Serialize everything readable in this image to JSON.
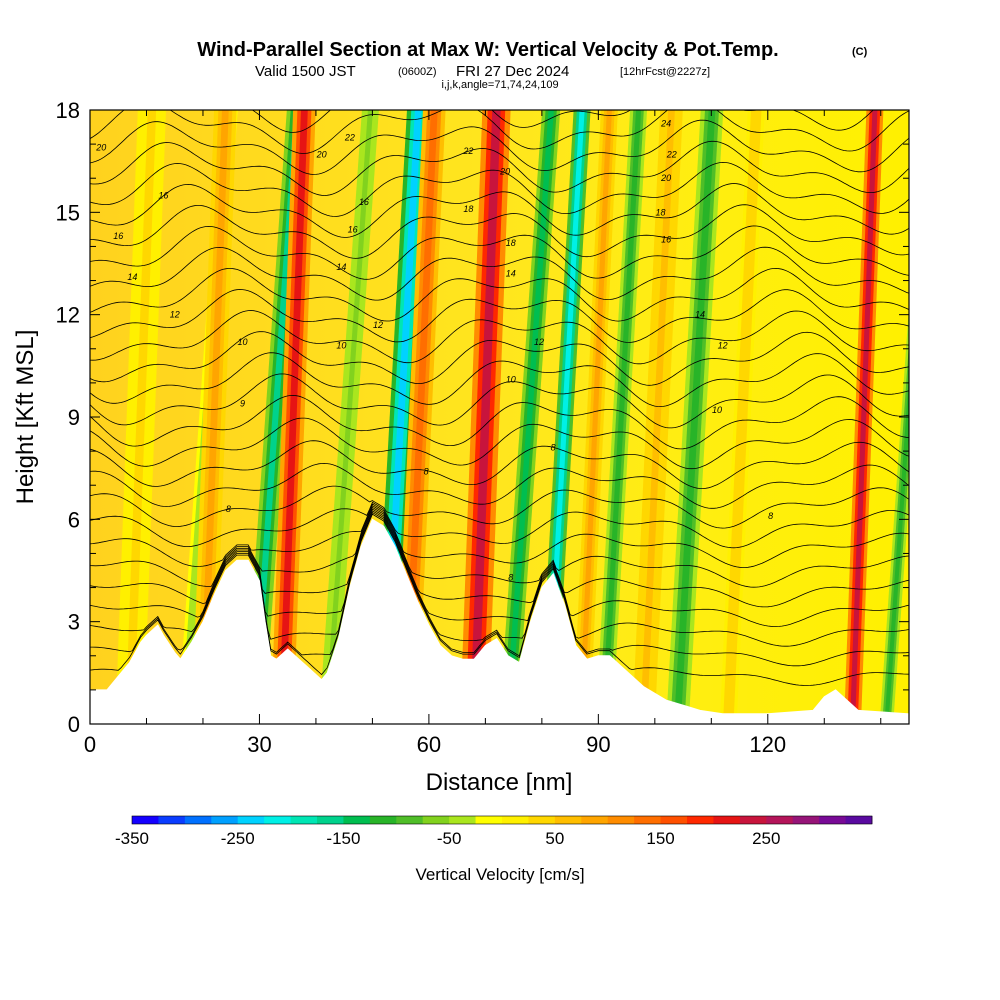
{
  "header": {
    "title": "Wind-Parallel Section at Max W: Vertical Velocity & Pot.Temp.",
    "copyright": "(C)",
    "valid_prefix": "Valid 1500 JST",
    "valid_utc": "(0600Z)",
    "valid_date": "FRI 27 Dec 2024",
    "forecast": "[12hrFcst@2227z]",
    "indices": "i,j,k,angle=71,74,24,109"
  },
  "chart_data": {
    "type": "heatmap",
    "xlabel": "Distance [nm]",
    "ylabel": "Height [Kft MSL]",
    "xlim": [
      0,
      145
    ],
    "ylim": [
      0,
      18
    ],
    "x_ticks": [
      "0",
      "30",
      "60",
      "90",
      "120"
    ],
    "y_ticks": [
      "0",
      "3",
      "6",
      "9",
      "12",
      "15",
      "18"
    ],
    "colorbar": {
      "label": "Vertical Velocity [cm/s]",
      "range": [
        -350,
        350
      ],
      "tick_labels": [
        "-350",
        "-250",
        "-150",
        "-50",
        "50",
        "150",
        "250"
      ],
      "colors": [
        "#1400ff",
        "#0a3cff",
        "#0070ff",
        "#00a0ff",
        "#00d2ff",
        "#00f0e6",
        "#00e6b4",
        "#00d28c",
        "#00be50",
        "#28b428",
        "#50be28",
        "#82d21e",
        "#aae61e",
        "#ffff00",
        "#fff000",
        "#ffd700",
        "#ffbe00",
        "#ffa500",
        "#ff8c00",
        "#ff6e00",
        "#ff5000",
        "#ff2800",
        "#e61414",
        "#c8143c",
        "#b4145a",
        "#961478",
        "#780a96",
        "#5a0aa0"
      ]
    },
    "terrain_kft": [
      [
        0,
        1.0
      ],
      [
        3,
        1.0
      ],
      [
        5,
        1.4
      ],
      [
        7,
        1.8
      ],
      [
        9,
        2.4
      ],
      [
        10,
        2.6
      ],
      [
        12,
        2.9
      ],
      [
        13,
        2.6
      ],
      [
        15,
        2.1
      ],
      [
        16,
        1.9
      ],
      [
        18,
        2.4
      ],
      [
        20,
        3.0
      ],
      [
        22,
        3.8
      ],
      [
        24,
        4.5
      ],
      [
        26,
        4.8
      ],
      [
        28,
        4.8
      ],
      [
        30,
        4.2
      ],
      [
        31,
        3.0
      ],
      [
        32,
        2.0
      ],
      [
        33,
        1.9
      ],
      [
        35,
        2.2
      ],
      [
        37,
        1.9
      ],
      [
        39,
        1.6
      ],
      [
        41,
        1.3
      ],
      [
        42,
        1.5
      ],
      [
        44,
        2.5
      ],
      [
        46,
        4.0
      ],
      [
        48,
        5.2
      ],
      [
        50,
        6.0
      ],
      [
        52,
        5.8
      ],
      [
        54,
        5.2
      ],
      [
        56,
        4.4
      ],
      [
        58,
        3.6
      ],
      [
        60,
        2.9
      ],
      [
        62,
        2.3
      ],
      [
        64,
        2.0
      ],
      [
        66,
        1.9
      ],
      [
        68,
        1.9
      ],
      [
        70,
        2.3
      ],
      [
        72,
        2.5
      ],
      [
        74,
        2.0
      ],
      [
        76,
        1.8
      ],
      [
        78,
        3.0
      ],
      [
        80,
        4.0
      ],
      [
        82,
        4.4
      ],
      [
        84,
        3.5
      ],
      [
        86,
        2.3
      ],
      [
        88,
        1.9
      ],
      [
        90,
        2.0
      ],
      [
        92,
        2.0
      ],
      [
        94,
        1.7
      ],
      [
        96,
        1.4
      ],
      [
        98,
        1.1
      ],
      [
        100,
        0.9
      ],
      [
        102,
        0.7
      ],
      [
        104,
        0.6
      ],
      [
        106,
        0.5
      ],
      [
        108,
        0.4
      ],
      [
        112,
        0.3
      ],
      [
        120,
        0.3
      ],
      [
        128,
        0.4
      ],
      [
        130,
        0.8
      ],
      [
        132,
        1.0
      ],
      [
        134,
        0.7
      ],
      [
        136,
        0.4
      ],
      [
        145,
        0.3
      ]
    ],
    "vertical_velocity_bands": [
      {
        "x": 7,
        "width": 2.5,
        "value": 30
      },
      {
        "x": 17,
        "width": 1.5,
        "value": -50
      },
      {
        "x": 20,
        "width": 2.0,
        "value": 90
      },
      {
        "x": 29,
        "width": 1.8,
        "value": -160
      },
      {
        "x": 34,
        "width": 2.0,
        "value": 200
      },
      {
        "x": 42,
        "width": 1.5,
        "value": -60
      },
      {
        "x": 52,
        "width": 2.0,
        "value": -250
      },
      {
        "x": 56,
        "width": 2.0,
        "value": 140
      },
      {
        "x": 68,
        "width": 2.5,
        "value": 230
      },
      {
        "x": 74,
        "width": 1.6,
        "value": -140
      },
      {
        "x": 81,
        "width": 1.5,
        "value": -220
      },
      {
        "x": 87,
        "width": 1.5,
        "value": 90
      },
      {
        "x": 91,
        "width": 1.5,
        "value": -110
      },
      {
        "x": 98,
        "width": 2.0,
        "value": 60
      },
      {
        "x": 104,
        "width": 2.0,
        "value": -110
      },
      {
        "x": 113,
        "width": 1.5,
        "value": 40
      },
      {
        "x": 135,
        "width": 1.5,
        "value": 240
      },
      {
        "x": 141,
        "width": 1.2,
        "value": -110
      }
    ],
    "contour_labels": [
      {
        "text": "20",
        "x": 2,
        "y": 16.9
      },
      {
        "text": "16",
        "x": 13,
        "y": 15.5
      },
      {
        "text": "16",
        "x": 5,
        "y": 14.3
      },
      {
        "text": "14",
        "x": 7.5,
        "y": 13.1
      },
      {
        "text": "12",
        "x": 15,
        "y": 12.0
      },
      {
        "text": "10",
        "x": 27,
        "y": 11.2
      },
      {
        "text": "9",
        "x": 27,
        "y": 9.4
      },
      {
        "text": "8",
        "x": 24.5,
        "y": 6.3
      },
      {
        "text": "22",
        "x": 46,
        "y": 17.2
      },
      {
        "text": "20",
        "x": 41,
        "y": 16.7
      },
      {
        "text": "16",
        "x": 48.5,
        "y": 15.3
      },
      {
        "text": "16",
        "x": 46.5,
        "y": 14.5
      },
      {
        "text": "14",
        "x": 44.5,
        "y": 13.4
      },
      {
        "text": "10",
        "x": 44.5,
        "y": 11.1
      },
      {
        "text": "12",
        "x": 51,
        "y": 11.7
      },
      {
        "text": "8",
        "x": 59.5,
        "y": 7.4
      },
      {
        "text": "22",
        "x": 67,
        "y": 16.8
      },
      {
        "text": "18",
        "x": 67,
        "y": 15.1
      },
      {
        "text": "20",
        "x": 73.5,
        "y": 16.2
      },
      {
        "text": "18",
        "x": 74.5,
        "y": 14.1
      },
      {
        "text": "14",
        "x": 74.5,
        "y": 13.2
      },
      {
        "text": "12",
        "x": 79.5,
        "y": 11.2
      },
      {
        "text": "10",
        "x": 74.5,
        "y": 10.1
      },
      {
        "text": "8",
        "x": 82,
        "y": 8.1
      },
      {
        "text": "8",
        "x": 74.5,
        "y": 4.3
      },
      {
        "text": "24",
        "x": 102,
        "y": 17.6
      },
      {
        "text": "22",
        "x": 103,
        "y": 16.7
      },
      {
        "text": "20",
        "x": 102,
        "y": 16.0
      },
      {
        "text": "18",
        "x": 101,
        "y": 15.0
      },
      {
        "text": "16",
        "x": 102,
        "y": 14.2
      },
      {
        "text": "14",
        "x": 108,
        "y": 12.0
      },
      {
        "text": "12",
        "x": 112,
        "y": 11.1
      },
      {
        "text": "10",
        "x": 111,
        "y": 9.2
      },
      {
        "text": "8",
        "x": 120.5,
        "y": 6.1
      }
    ]
  }
}
